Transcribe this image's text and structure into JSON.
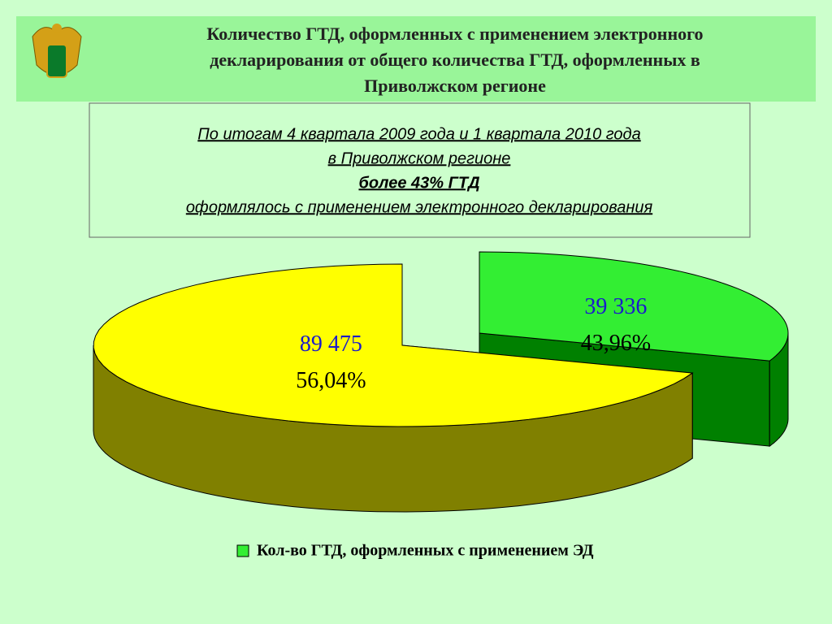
{
  "header": {
    "title_lines": [
      "Количество ГТД, оформленных с применением электронного",
      "декларирования от общего количества ГТД, оформленных в",
      "Приволжском регионе"
    ]
  },
  "info_box": {
    "lines": [
      "По итогам 4 квартала 2009 года и 1 квартала 2010 года",
      "в Приволжском регионе",
      "более 43% ГТД",
      "оформлялось с применением электронного декларирования"
    ]
  },
  "chart_data": {
    "type": "pie",
    "values": [
      89475,
      39336
    ],
    "value_labels": [
      "89 475",
      "39 336"
    ],
    "shares": [
      56.04,
      43.96
    ],
    "share_labels": [
      "56,04%",
      "43,96%"
    ],
    "colors": [
      "#ffff00",
      "#33ee33"
    ],
    "side_colors": [
      "#808000",
      "#008000"
    ],
    "legend": {
      "label": "Кол-во ГТД, оформленных с применением ЭД",
      "color": "#33ee33"
    }
  }
}
